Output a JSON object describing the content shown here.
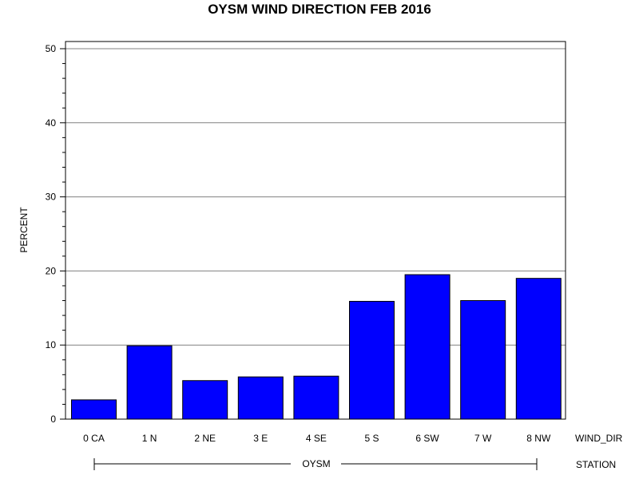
{
  "chart_data": {
    "type": "bar",
    "title": "OYSM WIND DIRECTION FEB 2016",
    "ylabel": "PERCENT",
    "xlabel": "WIND_DIR",
    "group_label": "STATION",
    "group_value": "OYSM",
    "categories": [
      "0 CA",
      "1 N",
      "2 NE",
      "3 E",
      "4 SE",
      "5 S",
      "6 SW",
      "7 W",
      "8 NW"
    ],
    "values": [
      2.6,
      9.9,
      5.2,
      5.7,
      5.8,
      15.9,
      19.5,
      16.0,
      19.0
    ],
    "ylim": [
      0,
      50
    ],
    "yticks": [
      0,
      10,
      20,
      30,
      40,
      50
    ],
    "grid": true,
    "colors": {
      "bar_fill": "#0000ff",
      "bar_stroke": "#000000",
      "grid": "#808080"
    }
  }
}
